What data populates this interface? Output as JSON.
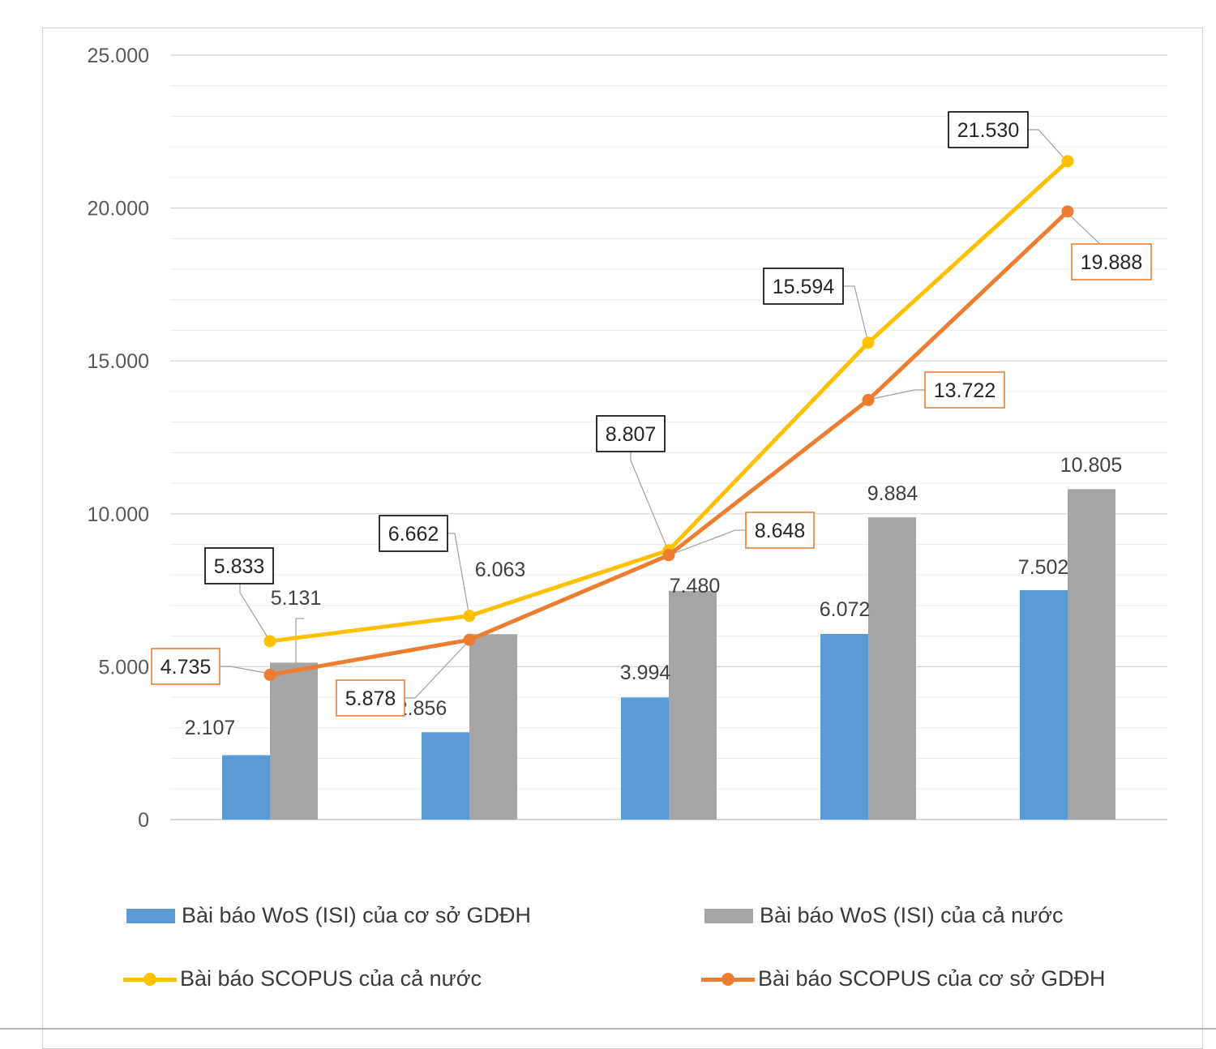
{
  "chart_data": {
    "type": "bar+line",
    "title": "",
    "xlabel": "",
    "ylabel": "",
    "ylim": [
      0,
      25000
    ],
    "y_ticks": [
      0,
      5000,
      10000,
      15000,
      20000,
      25000
    ],
    "y_tick_labels": [
      "0",
      "5.000",
      "10.000",
      "15.000",
      "20.000",
      "25.000"
    ],
    "categories": [
      "",
      "",
      "",
      "",
      ""
    ],
    "grid": "horizontal major and minor",
    "legend_position": "bottom",
    "series": [
      {
        "name": "Bài báo WoS (ISI) của cơ sở GDĐH",
        "kind": "bar",
        "color": "#5b9bd5",
        "values": [
          2107,
          2856,
          3994,
          6072,
          7502
        ],
        "labels": [
          "2.107",
          "2.856",
          "3.994",
          "6.072",
          "7.502"
        ]
      },
      {
        "name": "Bài báo WoS (ISI) của cả nước",
        "kind": "bar",
        "color": "#a5a5a5",
        "values": [
          5131,
          6063,
          7480,
          9884,
          10805
        ],
        "labels": [
          "5.131",
          "6.063",
          "7.480",
          "9.884",
          "10.805"
        ]
      },
      {
        "name": "Bài báo SCOPUS của cả nước",
        "kind": "line",
        "color": "#ffc000",
        "label_border": "#000000",
        "values": [
          5833,
          6662,
          8807,
          15594,
          21530
        ],
        "labels": [
          "5.833",
          "6.662",
          "8.807",
          "15.594",
          "21.530"
        ]
      },
      {
        "name": "Bài báo SCOPUS của cơ sở GDĐH",
        "kind": "line",
        "color": "#ed7d31",
        "label_border": "#ed7d31",
        "values": [
          4735,
          5878,
          8648,
          13722,
          19888
        ],
        "labels": [
          "4.735",
          "5.878",
          "8.648",
          "13.722",
          "19.888"
        ]
      }
    ]
  },
  "legend": [
    {
      "label": "Bài báo WoS (ISI) của cơ sở GDĐH",
      "kind": "bar",
      "color": "#5b9bd5"
    },
    {
      "label": "Bài báo WoS (ISI) của cả nước",
      "kind": "bar",
      "color": "#a5a5a5"
    },
    {
      "label": "Bài báo SCOPUS của cả nước",
      "kind": "line",
      "color": "#ffc000"
    },
    {
      "label": "Bài báo SCOPUS của cơ sở GDĐH",
      "kind": "line",
      "color": "#ed7d31"
    }
  ]
}
